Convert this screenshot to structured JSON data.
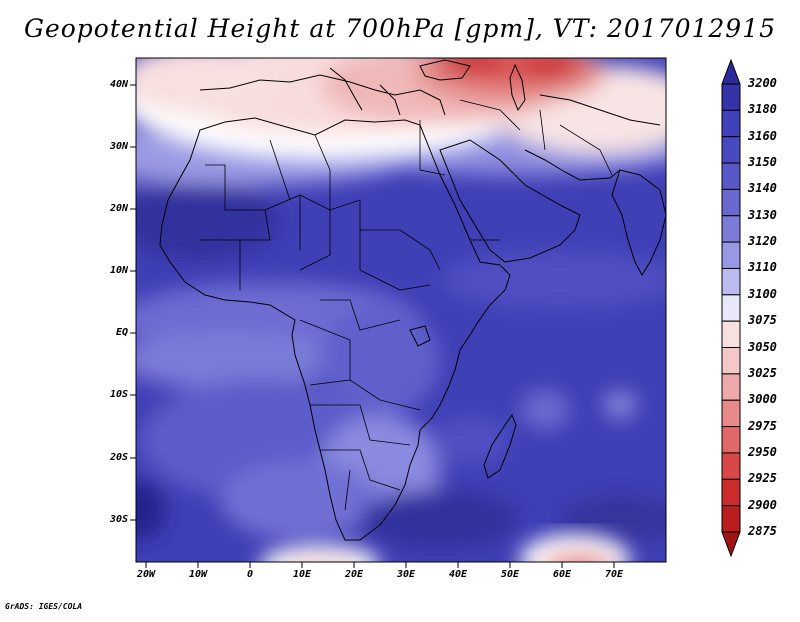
{
  "title": "Geopotential Height at 700hPa [gpm], VT: 2017012915",
  "credit": "GrADS: IGES/COLA",
  "lat_labels": [
    "40N",
    "30N",
    "20N",
    "10N",
    "EQ",
    "10S",
    "20S",
    "30S"
  ],
  "lon_labels": [
    "20W",
    "10W",
    "0",
    "10E",
    "20E",
    "30E",
    "40E",
    "50E",
    "60E",
    "70E"
  ],
  "colorbar": {
    "labels": [
      "3200",
      "3180",
      "3160",
      "3150",
      "3140",
      "3130",
      "3120",
      "3110",
      "3100",
      "3075",
      "3050",
      "3025",
      "3000",
      "2975",
      "2950",
      "2925",
      "2900",
      "2875"
    ],
    "colors": [
      "#2a2a9c",
      "#3434a8",
      "#4040b8",
      "#4a4ac0",
      "#5858c8",
      "#6868d0",
      "#7c7cd8",
      "#9898e4",
      "#bcbcf0",
      "#e8e8fa",
      "#f8e0e0",
      "#f4c8c8",
      "#eeaaaa",
      "#e88a8a",
      "#e06868",
      "#d84848",
      "#cc2c2c",
      "#b81e1e",
      "#a01414"
    ]
  }
}
